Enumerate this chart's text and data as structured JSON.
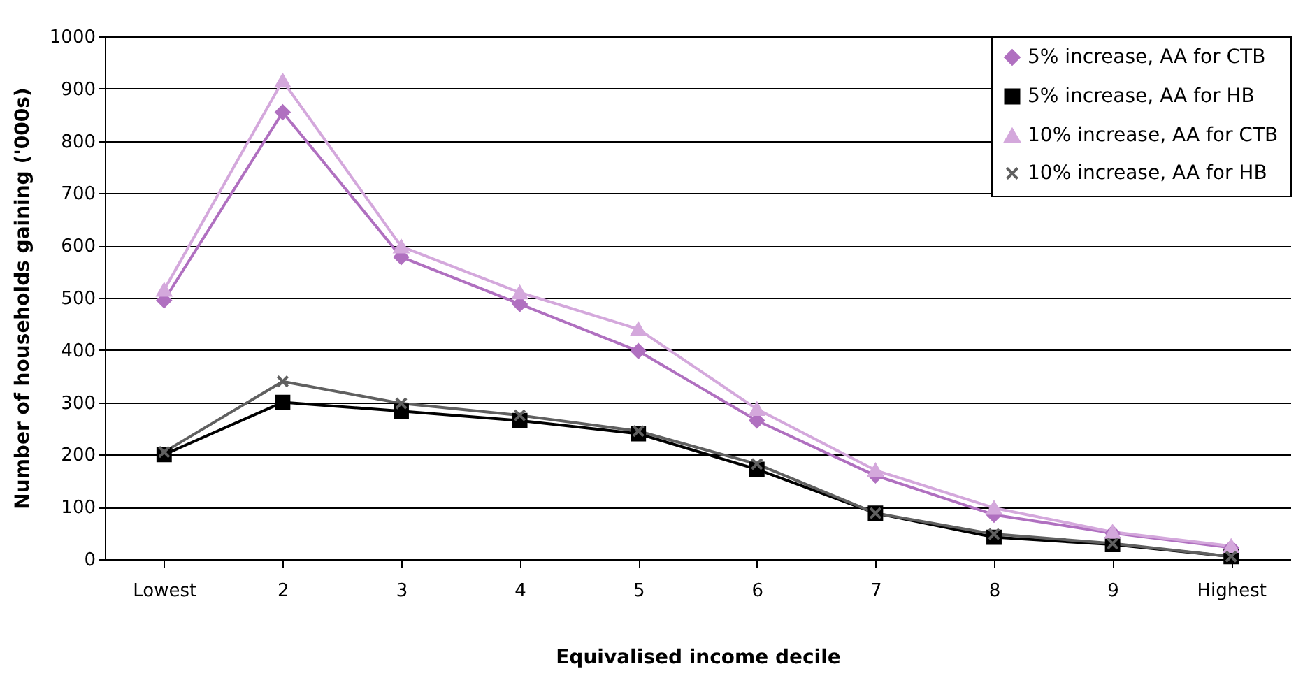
{
  "chart_data": {
    "type": "line",
    "xlabel": "Equivalised income decile",
    "ylabel": "Number of households gaining ('000s)",
    "categories": [
      "Lowest",
      "2",
      "3",
      "4",
      "5",
      "6",
      "7",
      "8",
      "9",
      "Highest"
    ],
    "series": [
      {
        "name": "5% increase, AA for CTB",
        "color": "#b070c0",
        "marker": "diamond",
        "values": [
          495,
          855,
          578,
          488,
          398,
          265,
          160,
          85,
          50,
          22
        ]
      },
      {
        "name": "5% increase, AA for HB",
        "color": "#000000",
        "marker": "square",
        "values": [
          200,
          300,
          283,
          265,
          240,
          172,
          88,
          42,
          28,
          5
        ]
      },
      {
        "name": "10% increase, AA for CTB",
        "color": "#d4a8dc",
        "marker": "triangle",
        "values": [
          515,
          915,
          598,
          510,
          440,
          287,
          170,
          98,
          52,
          25
        ]
      },
      {
        "name": "10% increase, AA for HB",
        "color": "#606060",
        "marker": "cross",
        "values": [
          205,
          340,
          298,
          275,
          245,
          182,
          88,
          48,
          30,
          5
        ]
      }
    ],
    "ylim": [
      0,
      1000
    ],
    "yticks": [
      0,
      100,
      200,
      300,
      400,
      500,
      600,
      700,
      800,
      900,
      {
        "value": 1000,
        "label": "1000"
      }
    ],
    "grid": "y",
    "legend": "top right",
    "line_style": "solid"
  }
}
